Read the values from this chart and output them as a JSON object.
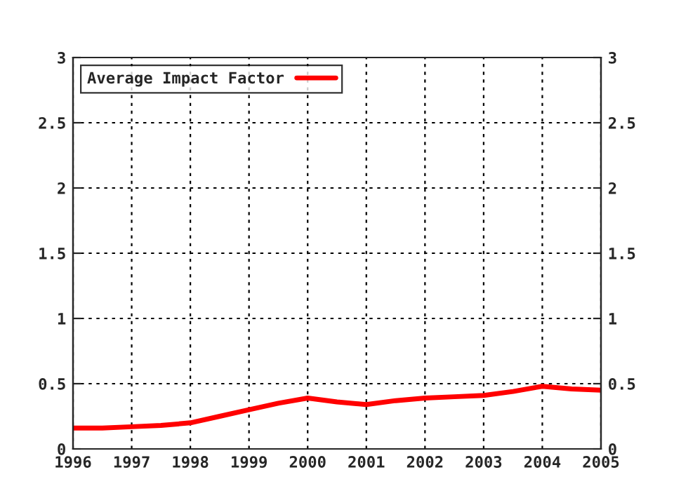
{
  "chart_data": {
    "type": "line",
    "x": [
      1996,
      1996.5,
      1997,
      1997.5,
      1998,
      1998.5,
      1999,
      1999.5,
      2000,
      2000.5,
      2001,
      2001.5,
      2002,
      2002.5,
      2003,
      2003.5,
      2004,
      2004.5,
      2005
    ],
    "series": [
      {
        "name": "Average Impact Factor",
        "color": "#ff0000",
        "values": [
          0.16,
          0.16,
          0.17,
          0.18,
          0.2,
          0.25,
          0.3,
          0.35,
          0.39,
          0.36,
          0.34,
          0.37,
          0.39,
          0.4,
          0.41,
          0.44,
          0.48,
          0.46,
          0.45
        ]
      }
    ],
    "xlim": [
      1996,
      2005
    ],
    "xticks": [
      1996,
      1997,
      1998,
      1999,
      2000,
      2001,
      2002,
      2003,
      2004,
      2005
    ],
    "ylim": [
      0,
      3
    ],
    "yticks": [
      0,
      0.5,
      1,
      1.5,
      2,
      2.5,
      3
    ],
    "y2lim": [
      0,
      3
    ],
    "y2ticks": [
      0,
      0.5,
      1,
      1.5,
      2,
      2.5,
      3
    ],
    "grid": true,
    "legend": "top left",
    "line_style": "solid",
    "marker": "none"
  }
}
